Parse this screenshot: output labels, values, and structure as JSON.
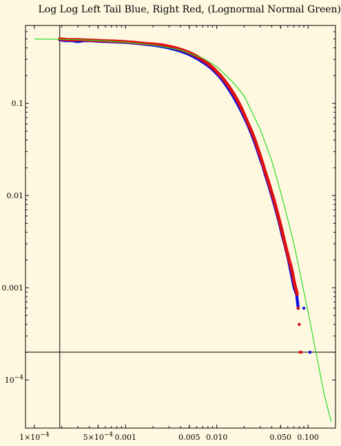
{
  "title": "Log Log Left Tail Blue, Right Red, (Lognormal Normal Green)",
  "colors": {
    "background": "#fff8e0",
    "left_tail": "#1010e0",
    "right_tail": "#e01010",
    "lognormal_fit": "#22dd22",
    "frame": "#000000"
  },
  "chart_data": {
    "type": "scatter",
    "title": "Log Log Left Tail Blue, Right Red, (Lognormal Normal Green)",
    "xlabel": "",
    "ylabel": "",
    "x_scale": "log",
    "y_scale": "log",
    "xlim": [
      8e-05,
      0.2
    ],
    "ylim": [
      3e-05,
      0.7
    ],
    "grid": false,
    "x_ticks": [
      {
        "value": 0.0001,
        "label": "1×10",
        "exp": "−4"
      },
      {
        "value": 0.0005,
        "label": "5×10",
        "exp": "−4"
      },
      {
        "value": 0.001,
        "label": "0.001",
        "exp": ""
      },
      {
        "value": 0.005,
        "label": "0.005",
        "exp": ""
      },
      {
        "value": 0.01,
        "label": "0.010",
        "exp": ""
      },
      {
        "value": 0.05,
        "label": "0.050",
        "exp": ""
      },
      {
        "value": 0.1,
        "label": "0.100",
        "exp": ""
      }
    ],
    "y_ticks": [
      {
        "value": 0.1,
        "label": "0.1",
        "exp": ""
      },
      {
        "value": 0.01,
        "label": "0.01",
        "exp": ""
      },
      {
        "value": 0.001,
        "label": "0.001",
        "exp": ""
      },
      {
        "value": 0.0001,
        "label": "10",
        "exp": "−4"
      }
    ],
    "reference_lines": {
      "x": 0.00019,
      "y": 0.0002
    },
    "series": [
      {
        "color": "#1010e0",
        "kind": "points",
        "x": [
          0.00019,
          0.00022,
          0.00026,
          0.0003,
          0.00035,
          0.0004,
          0.0005,
          0.0006,
          0.0008,
          0.001,
          0.0013,
          0.0016,
          0.002,
          0.0025,
          0.003,
          0.0035,
          0.004,
          0.0045,
          0.005,
          0.0055,
          0.006,
          0.0065,
          0.007,
          0.0075,
          0.008,
          0.0085,
          0.009,
          0.0095,
          0.01,
          0.011,
          0.012,
          0.013,
          0.014,
          0.015,
          0.016,
          0.017,
          0.018,
          0.019,
          0.02,
          0.022,
          0.024,
          0.026,
          0.028,
          0.03,
          0.032,
          0.034,
          0.036,
          0.038,
          0.04,
          0.042,
          0.044,
          0.046,
          0.048,
          0.05,
          0.052,
          0.054,
          0.056,
          0.058,
          0.06,
          0.062,
          0.064,
          0.066,
          0.068,
          0.07,
          0.072,
          0.075,
          0.078,
          0.08,
          0.09,
          0.105,
          0.105
        ],
        "y": [
          0.49,
          0.48,
          0.48,
          0.47,
          0.48,
          0.48,
          0.475,
          0.47,
          0.465,
          0.46,
          0.45,
          0.44,
          0.43,
          0.415,
          0.4,
          0.385,
          0.37,
          0.355,
          0.34,
          0.325,
          0.31,
          0.296,
          0.282,
          0.27,
          0.258,
          0.246,
          0.234,
          0.222,
          0.211,
          0.19,
          0.17,
          0.152,
          0.136,
          0.122,
          0.109,
          0.098,
          0.088,
          0.079,
          0.071,
          0.058,
          0.047,
          0.038,
          0.031,
          0.025,
          0.021,
          0.017,
          0.0143,
          0.012,
          0.0101,
          0.0086,
          0.0073,
          0.0062,
          0.0053,
          0.0045,
          0.0038,
          0.0033,
          0.0029,
          0.0025,
          0.0022,
          0.0019,
          0.0016,
          0.0014,
          0.0012,
          0.00105,
          0.00095,
          0.00085,
          0.0006,
          0.0004,
          0.0006,
          0.0002,
          0.0002
        ]
      },
      {
        "color": "#e01010",
        "kind": "points",
        "x": [
          0.00019,
          0.00024,
          0.0003,
          0.0004,
          0.0005,
          0.0007,
          0.0009,
          0.0012,
          0.0015,
          0.002,
          0.0025,
          0.003,
          0.0035,
          0.004,
          0.0045,
          0.005,
          0.0055,
          0.006,
          0.0065,
          0.007,
          0.0075,
          0.008,
          0.0085,
          0.009,
          0.0095,
          0.01,
          0.011,
          0.012,
          0.013,
          0.014,
          0.015,
          0.016,
          0.017,
          0.018,
          0.019,
          0.02,
          0.022,
          0.024,
          0.026,
          0.028,
          0.03,
          0.032,
          0.034,
          0.036,
          0.038,
          0.04,
          0.042,
          0.044,
          0.046,
          0.048,
          0.05,
          0.052,
          0.054,
          0.056,
          0.058,
          0.06,
          0.062,
          0.064,
          0.066,
          0.068,
          0.07,
          0.072,
          0.074,
          0.076,
          0.078,
          0.08,
          0.082,
          0.084
        ],
        "y": [
          0.5,
          0.49,
          0.49,
          0.485,
          0.48,
          0.475,
          0.47,
          0.46,
          0.45,
          0.44,
          0.43,
          0.415,
          0.4,
          0.385,
          0.37,
          0.355,
          0.34,
          0.325,
          0.31,
          0.296,
          0.282,
          0.27,
          0.256,
          0.244,
          0.232,
          0.22,
          0.2,
          0.18,
          0.162,
          0.146,
          0.131,
          0.118,
          0.106,
          0.095,
          0.085,
          0.076,
          0.061,
          0.05,
          0.041,
          0.033,
          0.027,
          0.022,
          0.018,
          0.0152,
          0.0128,
          0.0108,
          0.0092,
          0.0078,
          0.0066,
          0.0056,
          0.0048,
          0.0041,
          0.0035,
          0.003,
          0.0026,
          0.0023,
          0.002,
          0.0018,
          0.0016,
          0.0014,
          0.0012,
          0.00105,
          0.00095,
          0.00085,
          0.0006,
          0.0004,
          0.0002,
          0.0002
        ]
      },
      {
        "color": "#22dd22",
        "kind": "line",
        "x": [
          0.0001,
          0.00019,
          0.0003,
          0.0005,
          0.001,
          0.002,
          0.004,
          0.007,
          0.01,
          0.015,
          0.02,
          0.03,
          0.04,
          0.05,
          0.06,
          0.07,
          0.08,
          0.1,
          0.12,
          0.15,
          0.18
        ],
        "y": [
          0.5,
          0.495,
          0.49,
          0.48,
          0.46,
          0.43,
          0.38,
          0.31,
          0.25,
          0.17,
          0.12,
          0.052,
          0.024,
          0.011,
          0.0055,
          0.003,
          0.0016,
          0.00055,
          0.00022,
          7e-05,
          3.5e-05
        ]
      }
    ]
  }
}
